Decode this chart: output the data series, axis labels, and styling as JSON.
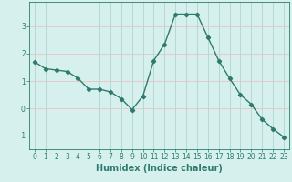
{
  "x": [
    0,
    1,
    2,
    3,
    4,
    5,
    6,
    7,
    8,
    9,
    10,
    11,
    12,
    13,
    14,
    15,
    16,
    17,
    18,
    19,
    20,
    21,
    22,
    23
  ],
  "y": [
    1.7,
    1.45,
    1.4,
    1.35,
    1.1,
    0.7,
    0.7,
    0.6,
    0.35,
    -0.05,
    0.45,
    1.75,
    2.35,
    3.45,
    3.45,
    3.45,
    2.6,
    1.75,
    1.1,
    0.5,
    0.15,
    -0.4,
    -0.75,
    -1.05
  ],
  "line_color": "#2e7b6e",
  "marker": "D",
  "markersize": 2.2,
  "linewidth": 1.0,
  "xlabel": "Humidex (Indice chaleur)",
  "xlabel_fontsize": 7,
  "xlabel_fontweight": "bold",
  "bg_color": "#d6f0ee",
  "grid_color_h": "#e8c8c8",
  "grid_color_v": "#b8d8d4",
  "tick_color": "#2e7b6e",
  "yticks": [
    -1,
    0,
    1,
    2,
    3
  ],
  "ylim": [
    -1.5,
    3.9
  ],
  "xlim": [
    -0.5,
    23.5
  ],
  "xtick_labels": [
    "0",
    "1",
    "2",
    "3",
    "4",
    "5",
    "6",
    "7",
    "8",
    "9",
    "10",
    "11",
    "12",
    "13",
    "14",
    "15",
    "16",
    "17",
    "18",
    "19",
    "20",
    "21",
    "22",
    "23"
  ],
  "tick_fontsize": 5.5,
  "ylabel_fontsize": 6.5
}
